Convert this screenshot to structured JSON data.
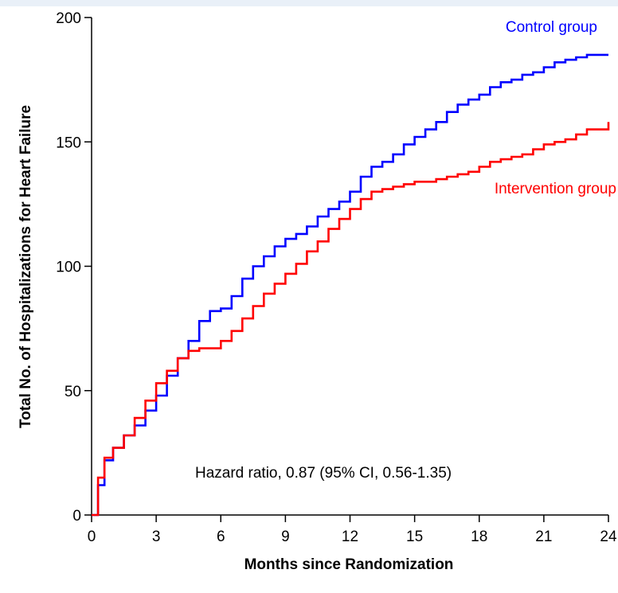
{
  "chart_data": {
    "type": "line",
    "title": "",
    "xlabel": "Months since Randomization",
    "ylabel": "Total No. of Hospitalizations for Heart Failure",
    "xlim": [
      0,
      24
    ],
    "ylim": [
      0,
      200
    ],
    "xticks": [
      0,
      3,
      6,
      9,
      12,
      15,
      18,
      21,
      24
    ],
    "yticks": [
      0,
      50,
      100,
      150,
      200
    ],
    "grid": false,
    "annotation": "Hazard ratio, 0.87 (95% CI, 0.56-1.35)",
    "series": [
      {
        "name": "Control group",
        "color": "#0000ff",
        "x": [
          0,
          0.3,
          0.6,
          1,
          1.5,
          2,
          2.5,
          3,
          3.5,
          4,
          4.5,
          5,
          5.5,
          6,
          6.5,
          7,
          7.5,
          8,
          8.5,
          9,
          9.5,
          10,
          10.5,
          11,
          11.5,
          12,
          12.5,
          13,
          13.5,
          14,
          14.5,
          15,
          15.5,
          16,
          16.5,
          17,
          17.5,
          18,
          18.5,
          19,
          19.5,
          20,
          20.5,
          21,
          21.5,
          22,
          22.5,
          23,
          24
        ],
        "y": [
          0,
          12,
          22,
          27,
          32,
          36,
          42,
          48,
          56,
          63,
          70,
          78,
          82,
          83,
          88,
          95,
          100,
          104,
          108,
          111,
          113,
          116,
          120,
          123,
          126,
          130,
          136,
          140,
          142,
          145,
          149,
          152,
          155,
          158,
          162,
          165,
          167,
          169,
          172,
          174,
          175,
          177,
          178,
          180,
          182,
          183,
          184,
          185,
          185
        ]
      },
      {
        "name": "Intervention group",
        "color": "#ff0000",
        "x": [
          0,
          0.3,
          0.6,
          1,
          1.5,
          2,
          2.5,
          3,
          3.5,
          4,
          4.5,
          5,
          5.5,
          6,
          6.5,
          7,
          7.5,
          8,
          8.5,
          9,
          9.5,
          10,
          10.5,
          11,
          11.5,
          12,
          12.5,
          13,
          13.5,
          14,
          14.5,
          15,
          15.5,
          16,
          16.5,
          17,
          17.5,
          18,
          18.5,
          19,
          19.5,
          20,
          20.5,
          21,
          21.5,
          22,
          22.5,
          23,
          24
        ],
        "y": [
          0,
          15,
          23,
          27,
          32,
          39,
          46,
          53,
          58,
          63,
          66,
          67,
          67,
          70,
          74,
          79,
          84,
          89,
          93,
          97,
          101,
          106,
          110,
          115,
          119,
          123,
          127,
          130,
          131,
          132,
          133,
          134,
          134,
          135,
          136,
          137,
          138,
          140,
          142,
          143,
          144,
          145,
          147,
          149,
          150,
          151,
          153,
          155,
          158
        ]
      }
    ]
  }
}
